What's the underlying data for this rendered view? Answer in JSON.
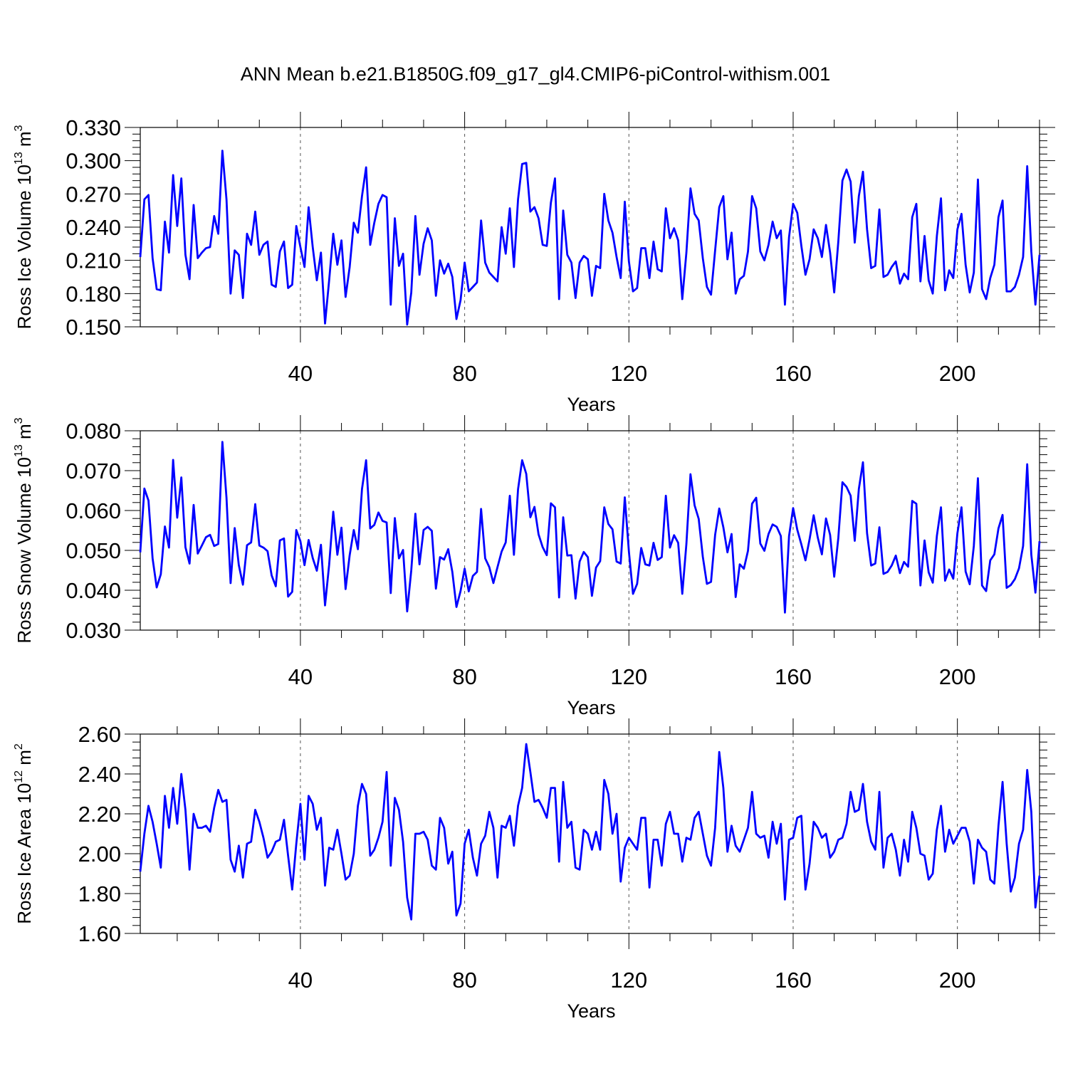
{
  "title": "ANN Mean b.e21.B1850G.f09_g17_gl4.CMIP6-piControl-withism.001",
  "series_color": "#0000ff",
  "chart_data": [
    {
      "type": "line",
      "ylabel": "Ross Ice Volume 10",
      "ylabel_exp": "13",
      "ylabel_unit": " m",
      "ylabel_unit_exp": "3",
      "xlabel": "Years",
      "xlim": [
        1,
        220
      ],
      "ylim": [
        0.15,
        0.33
      ],
      "yticks": [
        0.15,
        0.18,
        0.21,
        0.24,
        0.27,
        0.3,
        0.33
      ],
      "ytick_labels": [
        "0.150",
        "0.180",
        "0.210",
        "0.240",
        "0.270",
        "0.300",
        "0.330"
      ],
      "xticks": [
        40,
        80,
        120,
        160,
        200
      ],
      "xtick_labels": [
        "40",
        "80",
        "120",
        "160",
        "200"
      ],
      "values": [
        0.213,
        0.265,
        0.269,
        0.212,
        0.184,
        0.183,
        0.245,
        0.217,
        0.287,
        0.241,
        0.284,
        0.215,
        0.193,
        0.26,
        0.212,
        0.217,
        0.221,
        0.222,
        0.25,
        0.234,
        0.309,
        0.265,
        0.18,
        0.219,
        0.215,
        0.176,
        0.234,
        0.224,
        0.254,
        0.215,
        0.224,
        0.227,
        0.188,
        0.186,
        0.218,
        0.227,
        0.185,
        0.188,
        0.241,
        0.222,
        0.204,
        0.258,
        0.222,
        0.192,
        0.217,
        0.153,
        0.192,
        0.234,
        0.206,
        0.228,
        0.177,
        0.204,
        0.244,
        0.235,
        0.268,
        0.294,
        0.224,
        0.244,
        0.261,
        0.269,
        0.267,
        0.17,
        0.248,
        0.205,
        0.216,
        0.152,
        0.181,
        0.25,
        0.197,
        0.225,
        0.239,
        0.228,
        0.178,
        0.21,
        0.198,
        0.207,
        0.195,
        0.157,
        0.174,
        0.208,
        0.182,
        0.186,
        0.19,
        0.246,
        0.208,
        0.199,
        0.195,
        0.191,
        0.24,
        0.216,
        0.257,
        0.204,
        0.265,
        0.297,
        0.298,
        0.254,
        0.258,
        0.248,
        0.224,
        0.223,
        0.262,
        0.284,
        0.175,
        0.255,
        0.215,
        0.208,
        0.176,
        0.208,
        0.214,
        0.211,
        0.178,
        0.205,
        0.203,
        0.27,
        0.246,
        0.235,
        0.213,
        0.194,
        0.263,
        0.209,
        0.182,
        0.185,
        0.221,
        0.221,
        0.194,
        0.227,
        0.202,
        0.2,
        0.257,
        0.23,
        0.239,
        0.228,
        0.175,
        0.217,
        0.275,
        0.252,
        0.246,
        0.212,
        0.186,
        0.179,
        0.219,
        0.258,
        0.268,
        0.211,
        0.235,
        0.18,
        0.193,
        0.196,
        0.218,
        0.268,
        0.257,
        0.218,
        0.21,
        0.224,
        0.245,
        0.23,
        0.237,
        0.17,
        0.231,
        0.261,
        0.253,
        0.223,
        0.197,
        0.211,
        0.238,
        0.23,
        0.213,
        0.242,
        0.217,
        0.181,
        0.227,
        0.282,
        0.292,
        0.281,
        0.226,
        0.268,
        0.29,
        0.238,
        0.203,
        0.205,
        0.256,
        0.195,
        0.197,
        0.204,
        0.209,
        0.189,
        0.198,
        0.193,
        0.249,
        0.261,
        0.191,
        0.232,
        0.192,
        0.18,
        0.232,
        0.266,
        0.183,
        0.201,
        0.194,
        0.238,
        0.252,
        0.206,
        0.181,
        0.199,
        0.283,
        0.184,
        0.175,
        0.194,
        0.206,
        0.249,
        0.264,
        0.182,
        0.182,
        0.186,
        0.197,
        0.213,
        0.295,
        0.218,
        0.17,
        0.215
      ]
    },
    {
      "type": "line",
      "ylabel": "Ross Snow Volume 10",
      "ylabel_exp": "13",
      "ylabel_unit": " m",
      "ylabel_unit_exp": "3",
      "xlabel": "Years",
      "xlim": [
        1,
        220
      ],
      "ylim": [
        0.03,
        0.08
      ],
      "yticks": [
        0.03,
        0.04,
        0.05,
        0.06,
        0.07,
        0.08
      ],
      "ytick_labels": [
        "0.030",
        "0.040",
        "0.050",
        "0.060",
        "0.070",
        "0.080"
      ],
      "xticks": [
        40,
        80,
        120,
        160,
        200
      ],
      "xtick_labels": [
        "40",
        "80",
        "120",
        "160",
        "200"
      ],
      "values": [
        0.0495,
        0.0655,
        0.0625,
        0.048,
        0.0407,
        0.044,
        0.056,
        0.0507,
        0.0727,
        0.0582,
        0.0683,
        0.0508,
        0.0467,
        0.0614,
        0.0492,
        0.0512,
        0.0533,
        0.0539,
        0.0511,
        0.0516,
        0.0772,
        0.0632,
        0.0418,
        0.0556,
        0.0463,
        0.0414,
        0.0513,
        0.052,
        0.0616,
        0.0512,
        0.0507,
        0.0498,
        0.0437,
        0.041,
        0.0525,
        0.053,
        0.0384,
        0.0396,
        0.0551,
        0.0523,
        0.0463,
        0.0526,
        0.0481,
        0.0449,
        0.0514,
        0.0362,
        0.0464,
        0.0597,
        0.0489,
        0.0557,
        0.0403,
        0.0488,
        0.0551,
        0.0503,
        0.0654,
        0.0726,
        0.0555,
        0.0564,
        0.0595,
        0.0574,
        0.057,
        0.0393,
        0.0581,
        0.048,
        0.0501,
        0.0347,
        0.045,
        0.0592,
        0.0465,
        0.0551,
        0.0559,
        0.0549,
        0.0404,
        0.0483,
        0.0477,
        0.0503,
        0.0446,
        0.0358,
        0.0398,
        0.0454,
        0.0397,
        0.0436,
        0.0446,
        0.0604,
        0.048,
        0.0458,
        0.0418,
        0.0458,
        0.0497,
        0.052,
        0.0637,
        0.0489,
        0.0653,
        0.0726,
        0.0692,
        0.0583,
        0.0609,
        0.054,
        0.0508,
        0.0488,
        0.0618,
        0.0608,
        0.0382,
        0.0583,
        0.0487,
        0.0488,
        0.0379,
        0.0472,
        0.0496,
        0.0483,
        0.0386,
        0.0457,
        0.0473,
        0.0608,
        0.0566,
        0.0553,
        0.0472,
        0.0467,
        0.0633,
        0.0497,
        0.0391,
        0.0416,
        0.0506,
        0.0465,
        0.0462,
        0.0519,
        0.0476,
        0.0483,
        0.0637,
        0.0507,
        0.0538,
        0.0519,
        0.0391,
        0.0516,
        0.0691,
        0.0613,
        0.0579,
        0.0484,
        0.0416,
        0.0421,
        0.0539,
        0.0605,
        0.0558,
        0.0495,
        0.0541,
        0.0383,
        0.0465,
        0.0454,
        0.0499,
        0.0617,
        0.0632,
        0.0517,
        0.0499,
        0.0541,
        0.0565,
        0.0559,
        0.0536,
        0.0344,
        0.0536,
        0.0606,
        0.0552,
        0.0515,
        0.0475,
        0.0528,
        0.0588,
        0.0532,
        0.049,
        0.058,
        0.0539,
        0.0434,
        0.0531,
        0.0671,
        0.0659,
        0.0637,
        0.0524,
        0.0654,
        0.0721,
        0.0543,
        0.0462,
        0.0467,
        0.0558,
        0.0441,
        0.0446,
        0.0462,
        0.0487,
        0.0443,
        0.0471,
        0.0459,
        0.0624,
        0.0617,
        0.0412,
        0.0525,
        0.0445,
        0.0419,
        0.0536,
        0.0608,
        0.0424,
        0.0452,
        0.0429,
        0.0543,
        0.0608,
        0.0447,
        0.0415,
        0.0511,
        0.0681,
        0.0412,
        0.0398,
        0.0475,
        0.049,
        0.0555,
        0.0589,
        0.0406,
        0.0413,
        0.0428,
        0.0455,
        0.0511,
        0.0716,
        0.0489,
        0.0394,
        0.0523
      ]
    },
    {
      "type": "line",
      "ylabel": "Ross Ice Area 10",
      "ylabel_exp": "12",
      "ylabel_unit": " m",
      "ylabel_unit_exp": "2",
      "xlabel": "Years",
      "xlim": [
        1,
        220
      ],
      "ylim": [
        1.6,
        2.6
      ],
      "yticks": [
        1.6,
        1.8,
        2.0,
        2.2,
        2.4,
        2.6
      ],
      "ytick_labels": [
        "1.60",
        "1.80",
        "2.00",
        "2.20",
        "2.40",
        "2.60"
      ],
      "xticks": [
        40,
        80,
        120,
        160,
        200
      ],
      "xtick_labels": [
        "40",
        "80",
        "120",
        "160",
        "200"
      ],
      "values": [
        1.91,
        2.1,
        2.24,
        2.16,
        2.05,
        1.93,
        2.29,
        2.13,
        2.33,
        2.15,
        2.4,
        2.22,
        1.92,
        2.2,
        2.13,
        2.13,
        2.14,
        2.11,
        2.23,
        2.32,
        2.26,
        2.27,
        1.97,
        1.91,
        2.04,
        1.88,
        2.05,
        2.06,
        2.22,
        2.16,
        2.08,
        1.98,
        2.01,
        2.06,
        2.07,
        2.17,
        1.99,
        1.82,
        2.05,
        2.25,
        1.97,
        2.29,
        2.25,
        2.12,
        2.18,
        1.84,
        2.03,
        2.02,
        2.12,
        2.0,
        1.87,
        1.89,
        2.0,
        2.24,
        2.35,
        2.3,
        1.99,
        2.02,
        2.08,
        2.16,
        2.41,
        1.94,
        2.28,
        2.22,
        2.06,
        1.78,
        1.67,
        2.1,
        2.1,
        2.11,
        2.07,
        1.94,
        1.92,
        2.18,
        2.13,
        1.95,
        2.01,
        1.69,
        1.75,
        2.05,
        2.12,
        1.98,
        1.89,
        2.05,
        2.09,
        2.21,
        2.13,
        1.88,
        2.14,
        2.13,
        2.19,
        2.04,
        2.24,
        2.33,
        2.55,
        2.41,
        2.26,
        2.27,
        2.23,
        2.18,
        2.33,
        2.33,
        1.96,
        2.36,
        2.13,
        2.16,
        1.93,
        1.92,
        2.12,
        2.1,
        2.02,
        2.11,
        2.02,
        2.37,
        2.3,
        2.1,
        2.2,
        1.86,
        2.03,
        2.08,
        2.05,
        2.02,
        2.18,
        2.18,
        1.83,
        2.07,
        2.07,
        1.94,
        2.15,
        2.21,
        2.1,
        2.1,
        1.96,
        2.08,
        2.07,
        2.18,
        2.21,
        2.1,
        1.99,
        1.94,
        2.13,
        2.51,
        2.33,
        2.01,
        2.14,
        2.04,
        2.01,
        2.07,
        2.13,
        2.31,
        2.1,
        2.08,
        2.09,
        1.98,
        2.16,
        2.05,
        2.15,
        1.77,
        2.07,
        2.08,
        2.18,
        2.19,
        1.82,
        1.95,
        2.16,
        2.13,
        2.08,
        2.1,
        1.98,
        2.01,
        2.07,
        2.08,
        2.15,
        2.31,
        2.21,
        2.22,
        2.35,
        2.16,
        2.06,
        2.02,
        2.31,
        1.93,
        2.08,
        2.1,
        2.02,
        1.89,
        2.07,
        1.96,
        2.21,
        2.13,
        2.0,
        1.99,
        1.87,
        1.9,
        2.12,
        2.24,
        2.01,
        2.12,
        2.05,
        2.09,
        2.13,
        2.13,
        2.06,
        1.85,
        2.07,
        2.03,
        2.01,
        1.87,
        1.85,
        2.14,
        2.36,
        2.05,
        1.81,
        1.88,
        2.05,
        2.12,
        2.42,
        2.21,
        1.73,
        1.89
      ]
    }
  ]
}
